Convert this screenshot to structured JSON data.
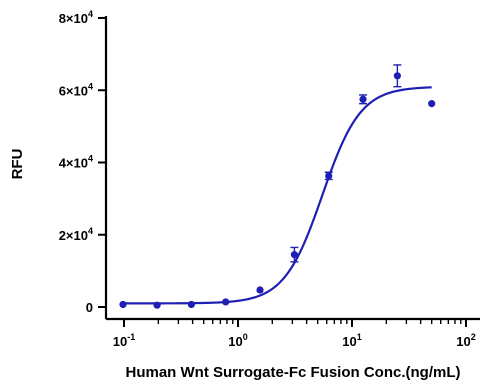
{
  "chart_data": {
    "type": "scatter",
    "xscale": "log",
    "xlim": [
      0.1,
      100
    ],
    "ylim": [
      0,
      80000
    ],
    "xlabel": "Human Wnt Surrogate-Fc Fusion Conc.(ng/mL)",
    "ylabel": "RFU",
    "grid": false,
    "xticks": [
      {
        "value": 0.1,
        "base": "10",
        "exp": "-1"
      },
      {
        "value": 1,
        "base": "10",
        "exp": "0"
      },
      {
        "value": 10,
        "base": "10",
        "exp": "1"
      },
      {
        "value": 100,
        "base": "10",
        "exp": "2"
      }
    ],
    "yticks": [
      {
        "value": 0,
        "base": "0",
        "exp": ""
      },
      {
        "value": 20000,
        "base": "2×10",
        "exp": "4"
      },
      {
        "value": 40000,
        "base": "4×10",
        "exp": "4"
      },
      {
        "value": 60000,
        "base": "6×10",
        "exp": "4"
      },
      {
        "value": 80000,
        "base": "8×10",
        "exp": "4"
      }
    ],
    "series": [
      {
        "color": "#1f1fb4",
        "points": [
          {
            "x": 0.098,
            "y": 700,
            "err": 0
          },
          {
            "x": 0.195,
            "y": 500,
            "err": 0
          },
          {
            "x": 0.39,
            "y": 700,
            "err": 0
          },
          {
            "x": 0.78,
            "y": 1400,
            "err": 0
          },
          {
            "x": 1.56,
            "y": 4700,
            "err": 0
          },
          {
            "x": 3.125,
            "y": 14500,
            "err": 2000
          },
          {
            "x": 6.25,
            "y": 36300,
            "err": 1000
          },
          {
            "x": 12.5,
            "y": 57500,
            "err": 1200
          },
          {
            "x": 25,
            "y": 64000,
            "err": 3000
          },
          {
            "x": 50,
            "y": 56300,
            "err": 0
          }
        ],
        "fit": {
          "bottom": 1000,
          "top": 61000,
          "ec50": 5.5,
          "hill": 2.6
        }
      }
    ]
  }
}
